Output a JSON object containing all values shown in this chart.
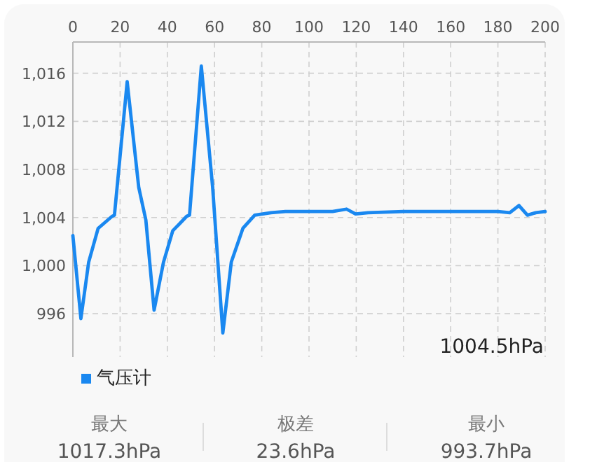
{
  "chart_data": {
    "type": "line",
    "series": [
      {
        "name": "气压计",
        "color": "#1a88f0",
        "x": [
          0,
          3.4,
          6.7,
          10.7,
          16.6,
          17.6,
          23,
          27.9,
          30.9,
          34.4,
          38.4,
          42.3,
          48.2,
          49.4,
          54.4,
          59.2,
          63.5,
          67.1,
          72,
          77,
          83.9,
          90,
          100,
          110,
          115.9,
          119.7,
          125,
          140,
          160,
          180,
          185,
          188.9,
          192.5,
          196,
          200
        ],
        "values": [
          1002.5,
          995.6,
          1000.3,
          1003.1,
          1004.1,
          1004.2,
          1015.3,
          1006.5,
          1003.8,
          996.3,
          1000.3,
          1002.9,
          1004.1,
          1004.2,
          1016.6,
          1006.5,
          994.4,
          1000.3,
          1003.1,
          1004.2,
          1004.4,
          1004.5,
          1004.5,
          1004.5,
          1004.7,
          1004.3,
          1004.4,
          1004.5,
          1004.5,
          1004.5,
          1004.4,
          1005.0,
          1004.2,
          1004.4,
          1004.5
        ]
      }
    ],
    "xlim": [
      0,
      200
    ],
    "xticks": [
      0,
      20,
      40,
      60,
      80,
      100,
      120,
      140,
      160,
      180,
      200
    ],
    "ylim": [
      992.4,
      1018.6
    ],
    "yticks": [
      {
        "value": 996,
        "label": "996"
      },
      {
        "value": 1000,
        "label": "1,000"
      },
      {
        "value": 1004,
        "label": "1,004"
      },
      {
        "value": 1008,
        "label": "1,008"
      },
      {
        "value": 1012,
        "label": "1,012"
      },
      {
        "value": 1016,
        "label": "1,016"
      }
    ],
    "grid": true,
    "legend": "bottom left",
    "marker": "none",
    "line_style": "solid",
    "annotations": [
      "1004.5hPa",
      "最大",
      "1017.3hPa",
      "极差",
      "23.6hPa",
      "最小",
      "993.7hPa"
    ]
  }
}
